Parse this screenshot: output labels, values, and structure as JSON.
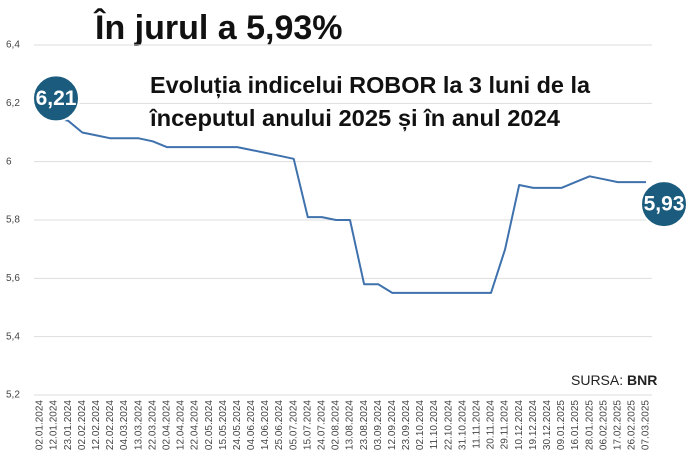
{
  "chart_data": {
    "type": "line",
    "title": "În jurul a 5,93%",
    "subtitle": [
      "Evoluția indicelui ROBOR la 3 luni de la",
      "începutul anului 2025 și în anul 2024"
    ],
    "start_label": "6,21",
    "end_label": "5,93",
    "source_prefix": "SURSA:",
    "source_name": "BNR",
    "categories": [
      "02.01.2024",
      "12.01.2024",
      "23.01.2024",
      "02.02.2024",
      "12.02.2024",
      "22.02.2024",
      "04.03.2024",
      "13.03.2024",
      "22.03.2024",
      "02.04.2024",
      "12.04.2024",
      "22.04.2024",
      "02.05.2024",
      "15.05.2024",
      "24.05.2024",
      "04.06.2024",
      "14.06.2024",
      "25.06.2024",
      "05.07.2024",
      "15.07.2024",
      "24.07.2024",
      "02.08.2024",
      "13.08.2024",
      "23.08.2024",
      "03.09.2024",
      "12.09.2024",
      "23.09.2024",
      "02.10.2024",
      "11.10.2024",
      "22.10.2024",
      "31.10.2024",
      "11.11.2024",
      "20.11.2024",
      "29.11.2024",
      "10.12.2024",
      "19.12.2024",
      "30.12.2024",
      "09.01.2025",
      "16.01.2025",
      "28.01.2025",
      "06.02.2025",
      "17.02.2025",
      "26.02.2025",
      "07.03.2025"
    ],
    "series": [
      {
        "name": "ROBOR 3M",
        "color": "#3f72ad",
        "values": [
          6.21,
          6.15,
          6.14,
          6.1,
          6.09,
          6.08,
          6.08,
          6.08,
          6.07,
          6.05,
          6.05,
          6.05,
          6.05,
          6.05,
          6.05,
          6.04,
          6.03,
          6.02,
          6.01,
          5.81,
          5.81,
          5.8,
          5.8,
          5.58,
          5.58,
          5.55,
          5.55,
          5.55,
          5.55,
          5.55,
          5.55,
          5.55,
          5.55,
          5.7,
          5.92,
          5.91,
          5.91,
          5.91,
          5.93,
          5.95,
          5.94,
          5.93,
          5.93,
          5.93
        ]
      }
    ],
    "ylim": [
      5.2,
      6.4
    ],
    "yticks": [
      {
        "value": 5.2,
        "label": "5,2"
      },
      {
        "value": 5.4,
        "label": "5,4"
      },
      {
        "value": 5.6,
        "label": "5,6"
      },
      {
        "value": 5.8,
        "label": "5,8"
      },
      6,
      {
        "value": 6.2,
        "label": "6,2"
      },
      {
        "value": 6.4,
        "label": "6,4"
      }
    ],
    "grid": true,
    "badge_color": "#1b5c7e"
  }
}
